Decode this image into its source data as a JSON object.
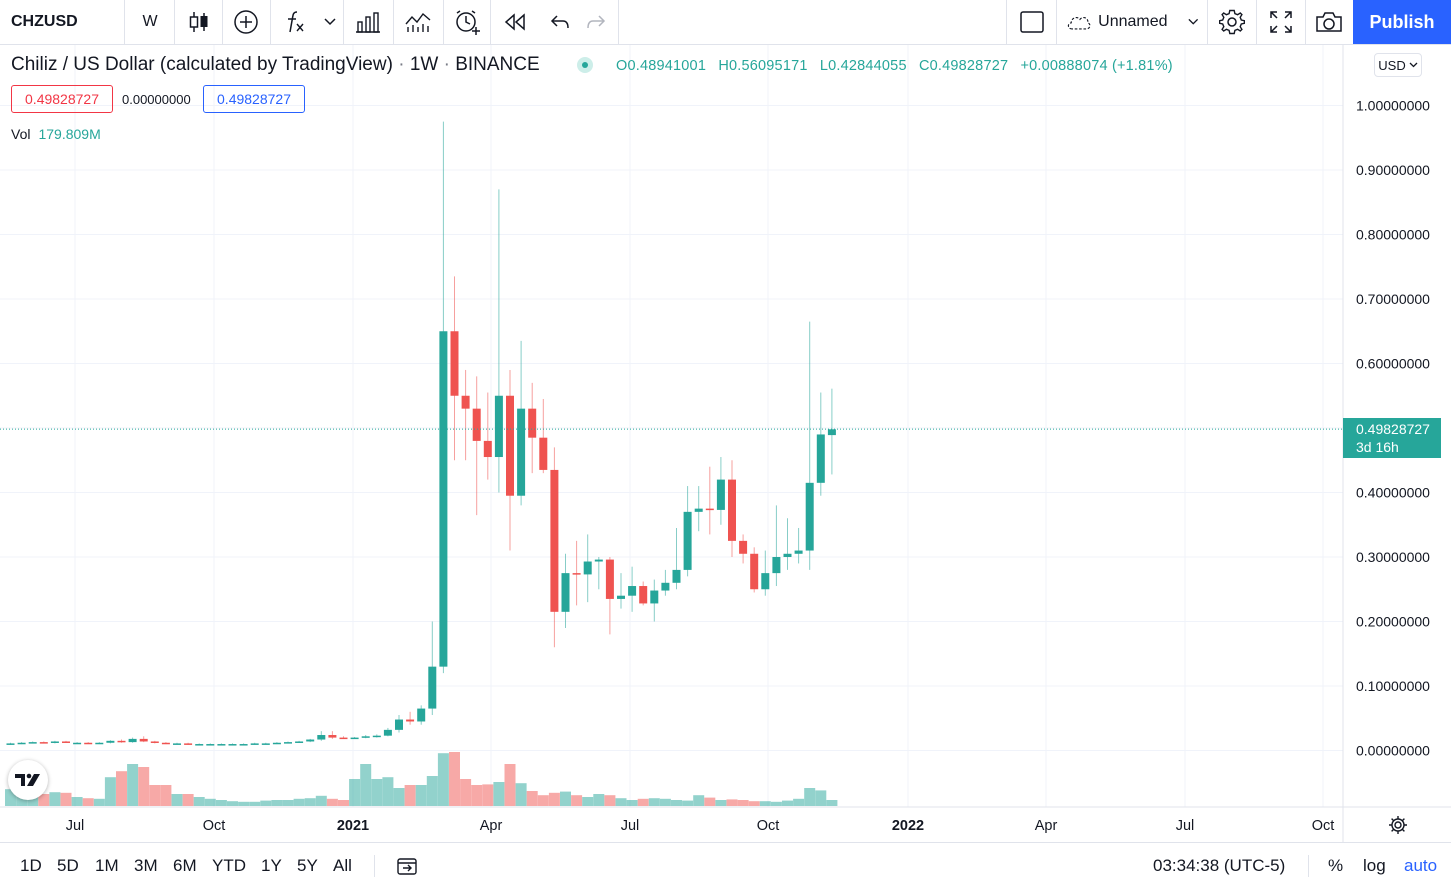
{
  "toolbar": {
    "symbol": "CHZUSD",
    "interval": "W",
    "layout_name": "Unnamed",
    "publish_label": "Publish"
  },
  "legend": {
    "title": "Chiliz / US Dollar (calculated by TradingView)",
    "sep1": "·",
    "interval": "1W",
    "sep2": "·",
    "exchange": "BINANCE",
    "open": "O0.48941001",
    "high": "H0.56095171",
    "low": "L0.42844055",
    "close": "C0.49828727",
    "change": "+0.00888074 (+1.81%)",
    "sell_price": "0.49828727",
    "spread": "0.00000000",
    "buy_price": "0.49828727",
    "vol_label": "Vol",
    "vol_value": "179.809M"
  },
  "currency": "USD",
  "current_price": {
    "price": "0.49828727",
    "countdown": "3d 16h"
  },
  "bottom": {
    "ranges": [
      "1D",
      "5D",
      "1M",
      "3M",
      "6M",
      "YTD",
      "1Y",
      "5Y",
      "All"
    ],
    "clock": "03:34:38 (UTC-5)",
    "percent": "%",
    "log": "log",
    "auto": "auto"
  },
  "colors": {
    "up": "#26a69a",
    "down": "#ef5350",
    "accent": "#2962ff",
    "grid": "#f0f3fa"
  },
  "icons": [
    "candles-icon",
    "add-indicator-plus-icon",
    "fx-indicators-icon",
    "compare-icon",
    "templates-icon",
    "alert-icon",
    "replay-icon",
    "undo-icon",
    "redo-icon",
    "layout-square-icon",
    "cloud-icon",
    "settings-gear-icon",
    "fullscreen-icon",
    "camera-icon",
    "calendar-goto-icon",
    "tradingview-logo-icon",
    "axis-settings-gear-icon"
  ],
  "chart_data": {
    "type": "candlestick",
    "symbol": "CHZUSD",
    "interval": "1W",
    "y_axis_labels": [
      "1.00000000",
      "0.90000000",
      "0.80000000",
      "0.70000000",
      "0.60000000",
      "0.50000000",
      "0.40000000",
      "0.30000000",
      "0.20000000",
      "0.10000000",
      "0.00000000"
    ],
    "y_range": [
      -0.09,
      1.06
    ],
    "x_axis_labels": [
      {
        "label": "Jul",
        "bold": false
      },
      {
        "label": "Oct",
        "bold": false
      },
      {
        "label": "2021",
        "bold": true
      },
      {
        "label": "Apr",
        "bold": false
      },
      {
        "label": "Jul",
        "bold": false
      },
      {
        "label": "Oct",
        "bold": false
      },
      {
        "label": "2022",
        "bold": true
      },
      {
        "label": "Apr",
        "bold": false
      },
      {
        "label": "Jul",
        "bold": false
      },
      {
        "label": "Oct",
        "bold": false
      }
    ],
    "x_axis_dates": [
      "2020-07-01",
      "2020-10-01",
      "2021-01-01",
      "2021-04-01",
      "2021-07-01",
      "2021-10-01",
      "2022-01-01",
      "2022-04-01",
      "2022-07-01",
      "2022-10-01"
    ],
    "last_price": 0.49828727,
    "candles": [
      {
        "o": 0.01,
        "h": 0.012,
        "l": 0.009,
        "c": 0.011
      },
      {
        "o": 0.011,
        "h": 0.013,
        "l": 0.01,
        "c": 0.012
      },
      {
        "o": 0.012,
        "h": 0.014,
        "l": 0.011,
        "c": 0.013
      },
      {
        "o": 0.013,
        "h": 0.014,
        "l": 0.011,
        "c": 0.012
      },
      {
        "o": 0.012,
        "h": 0.015,
        "l": 0.011,
        "c": 0.014
      },
      {
        "o": 0.014,
        "h": 0.015,
        "l": 0.012,
        "c": 0.012
      },
      {
        "o": 0.012,
        "h": 0.013,
        "l": 0.011,
        "c": 0.012
      },
      {
        "o": 0.012,
        "h": 0.013,
        "l": 0.011,
        "c": 0.011
      },
      {
        "o": 0.011,
        "h": 0.013,
        "l": 0.01,
        "c": 0.012
      },
      {
        "o": 0.012,
        "h": 0.016,
        "l": 0.011,
        "c": 0.015
      },
      {
        "o": 0.015,
        "h": 0.017,
        "l": 0.012,
        "c": 0.013
      },
      {
        "o": 0.013,
        "h": 0.02,
        "l": 0.012,
        "c": 0.018
      },
      {
        "o": 0.018,
        "h": 0.022,
        "l": 0.013,
        "c": 0.014
      },
      {
        "o": 0.014,
        "h": 0.015,
        "l": 0.011,
        "c": 0.012
      },
      {
        "o": 0.012,
        "h": 0.013,
        "l": 0.01,
        "c": 0.011
      },
      {
        "o": 0.011,
        "h": 0.012,
        "l": 0.01,
        "c": 0.011
      },
      {
        "o": 0.011,
        "h": 0.012,
        "l": 0.009,
        "c": 0.01
      },
      {
        "o": 0.01,
        "h": 0.011,
        "l": 0.009,
        "c": 0.01
      },
      {
        "o": 0.01,
        "h": 0.011,
        "l": 0.009,
        "c": 0.01
      },
      {
        "o": 0.01,
        "h": 0.011,
        "l": 0.009,
        "c": 0.01
      },
      {
        "o": 0.01,
        "h": 0.011,
        "l": 0.009,
        "c": 0.01
      },
      {
        "o": 0.01,
        "h": 0.011,
        "l": 0.009,
        "c": 0.01
      },
      {
        "o": 0.01,
        "h": 0.012,
        "l": 0.009,
        "c": 0.011
      },
      {
        "o": 0.011,
        "h": 0.012,
        "l": 0.01,
        "c": 0.011
      },
      {
        "o": 0.011,
        "h": 0.013,
        "l": 0.01,
        "c": 0.012
      },
      {
        "o": 0.012,
        "h": 0.014,
        "l": 0.011,
        "c": 0.013
      },
      {
        "o": 0.013,
        "h": 0.015,
        "l": 0.012,
        "c": 0.014
      },
      {
        "o": 0.014,
        "h": 0.018,
        "l": 0.013,
        "c": 0.017
      },
      {
        "o": 0.017,
        "h": 0.03,
        "l": 0.015,
        "c": 0.024
      },
      {
        "o": 0.024,
        "h": 0.03,
        "l": 0.018,
        "c": 0.02
      },
      {
        "o": 0.02,
        "h": 0.022,
        "l": 0.018,
        "c": 0.019
      },
      {
        "o": 0.019,
        "h": 0.021,
        "l": 0.018,
        "c": 0.02
      },
      {
        "o": 0.02,
        "h": 0.024,
        "l": 0.019,
        "c": 0.022
      },
      {
        "o": 0.022,
        "h": 0.025,
        "l": 0.02,
        "c": 0.023
      },
      {
        "o": 0.023,
        "h": 0.035,
        "l": 0.022,
        "c": 0.032
      },
      {
        "o": 0.032,
        "h": 0.055,
        "l": 0.028,
        "c": 0.048
      },
      {
        "o": 0.048,
        "h": 0.06,
        "l": 0.04,
        "c": 0.045
      },
      {
        "o": 0.045,
        "h": 0.07,
        "l": 0.04,
        "c": 0.065
      },
      {
        "o": 0.065,
        "h": 0.2,
        "l": 0.055,
        "c": 0.13
      },
      {
        "o": 0.13,
        "h": 0.975,
        "l": 0.12,
        "c": 0.65
      },
      {
        "o": 0.65,
        "h": 0.735,
        "l": 0.45,
        "c": 0.55
      },
      {
        "o": 0.55,
        "h": 0.59,
        "l": 0.45,
        "c": 0.53
      },
      {
        "o": 0.53,
        "h": 0.58,
        "l": 0.365,
        "c": 0.48
      },
      {
        "o": 0.48,
        "h": 0.555,
        "l": 0.42,
        "c": 0.455
      },
      {
        "o": 0.455,
        "h": 0.87,
        "l": 0.4,
        "c": 0.55
      },
      {
        "o": 0.55,
        "h": 0.59,
        "l": 0.31,
        "c": 0.395
      },
      {
        "o": 0.395,
        "h": 0.635,
        "l": 0.38,
        "c": 0.53
      },
      {
        "o": 0.53,
        "h": 0.57,
        "l": 0.43,
        "c": 0.485
      },
      {
        "o": 0.485,
        "h": 0.545,
        "l": 0.43,
        "c": 0.435
      },
      {
        "o": 0.435,
        "h": 0.47,
        "l": 0.16,
        "c": 0.215
      },
      {
        "o": 0.215,
        "h": 0.305,
        "l": 0.19,
        "c": 0.275
      },
      {
        "o": 0.275,
        "h": 0.325,
        "l": 0.225,
        "c": 0.273
      },
      {
        "o": 0.273,
        "h": 0.335,
        "l": 0.23,
        "c": 0.293
      },
      {
        "o": 0.293,
        "h": 0.3,
        "l": 0.25,
        "c": 0.296
      },
      {
        "o": 0.296,
        "h": 0.3,
        "l": 0.18,
        "c": 0.235
      },
      {
        "o": 0.235,
        "h": 0.275,
        "l": 0.22,
        "c": 0.24
      },
      {
        "o": 0.24,
        "h": 0.285,
        "l": 0.215,
        "c": 0.255
      },
      {
        "o": 0.255,
        "h": 0.262,
        "l": 0.225,
        "c": 0.228
      },
      {
        "o": 0.228,
        "h": 0.265,
        "l": 0.2,
        "c": 0.248
      },
      {
        "o": 0.248,
        "h": 0.28,
        "l": 0.24,
        "c": 0.26
      },
      {
        "o": 0.26,
        "h": 0.345,
        "l": 0.25,
        "c": 0.28
      },
      {
        "o": 0.28,
        "h": 0.41,
        "l": 0.27,
        "c": 0.37
      },
      {
        "o": 0.37,
        "h": 0.41,
        "l": 0.34,
        "c": 0.375
      },
      {
        "o": 0.375,
        "h": 0.44,
        "l": 0.335,
        "c": 0.373
      },
      {
        "o": 0.373,
        "h": 0.455,
        "l": 0.35,
        "c": 0.42
      },
      {
        "o": 0.42,
        "h": 0.45,
        "l": 0.3,
        "c": 0.325
      },
      {
        "o": 0.325,
        "h": 0.335,
        "l": 0.29,
        "c": 0.305
      },
      {
        "o": 0.305,
        "h": 0.315,
        "l": 0.245,
        "c": 0.25
      },
      {
        "o": 0.25,
        "h": 0.31,
        "l": 0.24,
        "c": 0.275
      },
      {
        "o": 0.275,
        "h": 0.38,
        "l": 0.255,
        "c": 0.3
      },
      {
        "o": 0.3,
        "h": 0.36,
        "l": 0.28,
        "c": 0.305
      },
      {
        "o": 0.305,
        "h": 0.345,
        "l": 0.29,
        "c": 0.31
      },
      {
        "o": 0.31,
        "h": 0.665,
        "l": 0.28,
        "c": 0.415
      },
      {
        "o": 0.415,
        "h": 0.555,
        "l": 0.395,
        "c": 0.49
      },
      {
        "o": 0.489,
        "h": 0.561,
        "l": 0.428,
        "c": 0.498
      }
    ],
    "volumes": [
      28,
      35,
      60,
      20,
      23,
      22,
      15,
      13,
      12,
      48,
      58,
      70,
      65,
      35,
      35,
      20,
      20,
      15,
      12,
      10,
      8,
      7,
      7,
      9,
      10,
      10,
      12,
      13,
      17,
      12,
      10,
      45,
      70,
      45,
      48,
      30,
      35,
      35,
      50,
      88,
      90,
      45,
      35,
      36,
      40,
      70,
      38,
      25,
      18,
      22,
      24,
      18,
      15,
      20,
      18,
      13,
      10,
      12,
      13,
      12,
      10,
      9,
      18,
      14,
      10,
      11,
      10,
      8,
      8,
      7,
      9,
      12,
      30,
      26,
      10
    ],
    "volume_colors": "green when close >= open, red otherwise"
  }
}
